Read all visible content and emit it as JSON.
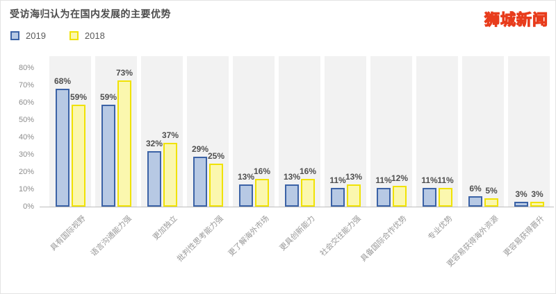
{
  "header": {
    "title": "受访海归认为在国内发展的主要优势",
    "watermark": "狮城新闻",
    "watermark_fill": "#ffe503",
    "watermark_stroke": "#e83c1c"
  },
  "legend": [
    {
      "label": "2019",
      "fill": "#b7c9e4",
      "border": "#3b62a6"
    },
    {
      "label": "2018",
      "fill": "#fbf7ae",
      "border": "#f0e204"
    }
  ],
  "chart_data": {
    "type": "bar",
    "title": "受访海归认为在国内发展的主要优势",
    "categories": [
      "具有国际视野",
      "语言沟通能力强",
      "更加独立",
      "批判性思考能力强",
      "更了解海外市场",
      "更具创新能力",
      "社会交往能力强",
      "具备国际合作优势",
      "专业优势",
      "更容易获得海外资源",
      "更容易获得晋升"
    ],
    "series": [
      {
        "name": "2019",
        "fill": "#b7c9e4",
        "border": "#3b62a6",
        "values": [
          68,
          59,
          32,
          29,
          13,
          13,
          11,
          11,
          11,
          6,
          3
        ]
      },
      {
        "name": "2018",
        "fill": "#fbf7ae",
        "border": "#f0e204",
        "values": [
          59,
          73,
          37,
          25,
          16,
          16,
          13,
          12,
          11,
          5,
          3
        ]
      }
    ],
    "xlabel": "",
    "ylabel": "",
    "ylim": [
      0,
      80
    ],
    "ytick_labels": [
      "0%",
      "10%",
      "20%",
      "30%",
      "40%",
      "50%",
      "60%",
      "70%",
      "80%"
    ],
    "value_label_suffix": "%",
    "grid": false,
    "legend_position": "top-left",
    "band_background": "#f2f2f2"
  }
}
